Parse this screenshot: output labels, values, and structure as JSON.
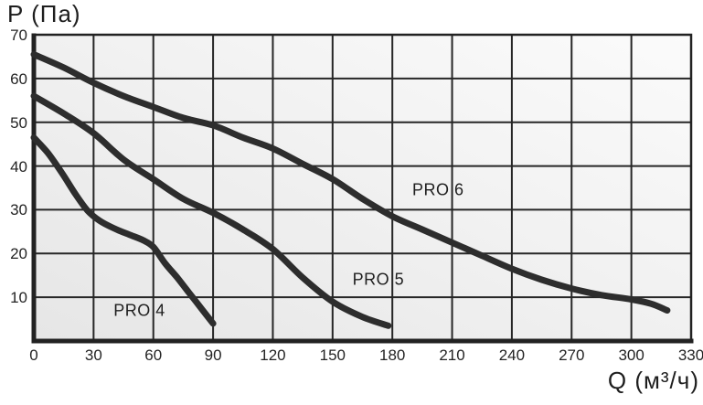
{
  "chart_data": {
    "type": "line",
    "title": "",
    "y_axis_title": "P (Па)",
    "x_axis_title": "Q (м³/ч)",
    "xlabel": "Q (м³/ч)",
    "ylabel": "P (Па)",
    "xlim": [
      0,
      330
    ],
    "ylim": [
      0,
      70
    ],
    "x_ticks": [
      0,
      30,
      60,
      90,
      120,
      150,
      180,
      210,
      240,
      270,
      300,
      330
    ],
    "y_ticks": [
      10,
      20,
      30,
      40,
      50,
      60,
      70
    ],
    "grid": true,
    "legend_position": "inline-labels",
    "colors": {
      "grid": "#262626",
      "axis": "#222222",
      "curve": "#2d2d2d",
      "text": "#1e1e1e",
      "plot_bg_from": "#e6e6e6",
      "plot_bg_to": "#fbfbfb",
      "page_bg": "#ffffff"
    },
    "series": [
      {
        "name": "PRO 4",
        "label": "PRO 4",
        "label_pos": {
          "q": 53,
          "p": 7
        },
        "points": [
          [
            0,
            46.5
          ],
          [
            7,
            43
          ],
          [
            14,
            38.5
          ],
          [
            21,
            33.5
          ],
          [
            27,
            29.8
          ],
          [
            33,
            27.5
          ],
          [
            40,
            25.8
          ],
          [
            48,
            24.3
          ],
          [
            55,
            23
          ],
          [
            60,
            21.5
          ],
          [
            66,
            17.7
          ],
          [
            72,
            14.5
          ],
          [
            78,
            11
          ],
          [
            84,
            7.5
          ],
          [
            90,
            4
          ]
        ]
      },
      {
        "name": "PRO 5",
        "label": "PRO 5",
        "label_pos": {
          "q": 173,
          "p": 14
        },
        "points": [
          [
            0,
            56
          ],
          [
            15,
            52
          ],
          [
            30,
            47.5
          ],
          [
            45,
            41.5
          ],
          [
            60,
            37
          ],
          [
            75,
            32.5
          ],
          [
            90,
            29.3
          ],
          [
            105,
            25.5
          ],
          [
            120,
            21
          ],
          [
            135,
            14.5
          ],
          [
            150,
            9
          ],
          [
            165,
            5.5
          ],
          [
            178,
            3.5
          ]
        ]
      },
      {
        "name": "PRO 6",
        "label": "PRO 6",
        "label_pos": {
          "q": 203,
          "p": 34.5
        },
        "points": [
          [
            0,
            65.5
          ],
          [
            15,
            62.5
          ],
          [
            30,
            59
          ],
          [
            45,
            56
          ],
          [
            60,
            53.5
          ],
          [
            75,
            51
          ],
          [
            90,
            49.3
          ],
          [
            105,
            46.5
          ],
          [
            120,
            44
          ],
          [
            135,
            40.5
          ],
          [
            150,
            37
          ],
          [
            165,
            32.5
          ],
          [
            180,
            28.5
          ],
          [
            195,
            25.5
          ],
          [
            210,
            22.5
          ],
          [
            225,
            19.5
          ],
          [
            240,
            16.5
          ],
          [
            255,
            14
          ],
          [
            270,
            12
          ],
          [
            285,
            10.5
          ],
          [
            300,
            9.5
          ],
          [
            310,
            8.5
          ],
          [
            318,
            7
          ]
        ]
      }
    ]
  }
}
